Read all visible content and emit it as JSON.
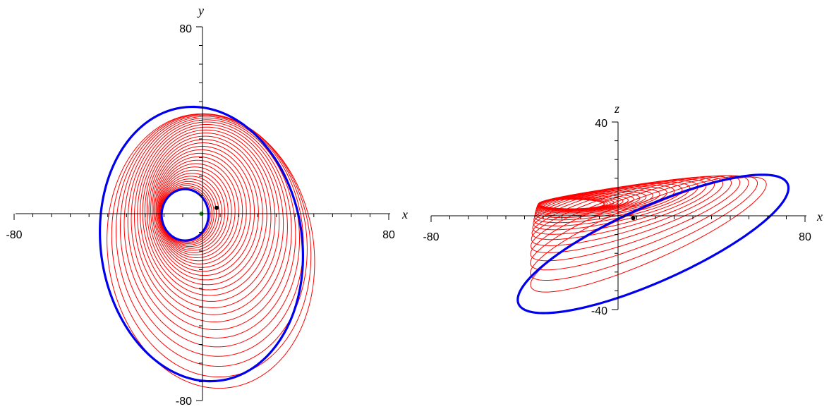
{
  "colors": {
    "transfer_orbits": "#ff0000",
    "boundary_orbits": "#0000ee",
    "origin_marker_xy": "#00aa00",
    "point_marker": "#000000"
  },
  "chart_data": [
    {
      "type": "line",
      "xlabel": "x",
      "ylabel": "y",
      "xlim": [
        -80,
        80
      ],
      "ylim": [
        -80,
        80
      ],
      "x_tick_labels": [
        "-80",
        "80"
      ],
      "y_tick_labels": [
        "80",
        "-80"
      ],
      "minor_tick_step": 8,
      "grid": false,
      "legend": "none",
      "series": [
        {
          "kind": "boundary",
          "color": "blue",
          "ellipse": {
            "center": [
              -7,
              -0.5
            ],
            "semi_axes": [
              10,
              11
            ],
            "rotation_deg": 0
          }
        },
        {
          "kind": "boundary",
          "color": "blue",
          "ellipse": {
            "center": [
              0,
              -13
            ],
            "semi_axes": [
              43,
              59
            ],
            "rotation_deg": 8
          }
        },
        {
          "kind": "transfer",
          "color": "red",
          "count": 32,
          "from": {
            "center": [
              -7,
              -0.5
            ],
            "semi_axes": [
              10,
              11
            ]
          },
          "to": {
            "center": [
              4,
              -16
            ],
            "semi_axes": [
              44,
              59
            ]
          },
          "tangent_angle_deg": 200
        }
      ],
      "markers": [
        {
          "x": 0,
          "y": 0,
          "color": "green"
        },
        {
          "x": 6.5,
          "y": 2.5,
          "color": "black"
        }
      ]
    },
    {
      "type": "line",
      "xlabel": "x",
      "ylabel": "z",
      "xlim": [
        -80,
        80
      ],
      "ylim": [
        -40,
        40
      ],
      "x_tick_labels": [
        "-80",
        "80"
      ],
      "y_tick_labels": [
        "40",
        "-40"
      ],
      "minor_tick_step": 8,
      "grid": false,
      "legend": "none",
      "series": [
        {
          "kind": "boundary",
          "color": "blue",
          "ellipse": {
            "center": [
              15,
              -12
            ],
            "semi_axes": [
              63,
              16
            ],
            "rotation_deg": 24
          }
        },
        {
          "kind": "transfer",
          "color": "red",
          "count": 26,
          "from": {
            "center": [
              -20,
              5
            ],
            "semi_axes": [
              14,
              2
            ]
          },
          "to": {
            "center": [
              13,
              -8
            ],
            "semi_axes": [
              55,
              11
            ]
          },
          "tangent_angle_deg": 190
        }
      ],
      "markers": [
        {
          "x": 6.5,
          "y": -1,
          "color": "black"
        }
      ]
    }
  ]
}
